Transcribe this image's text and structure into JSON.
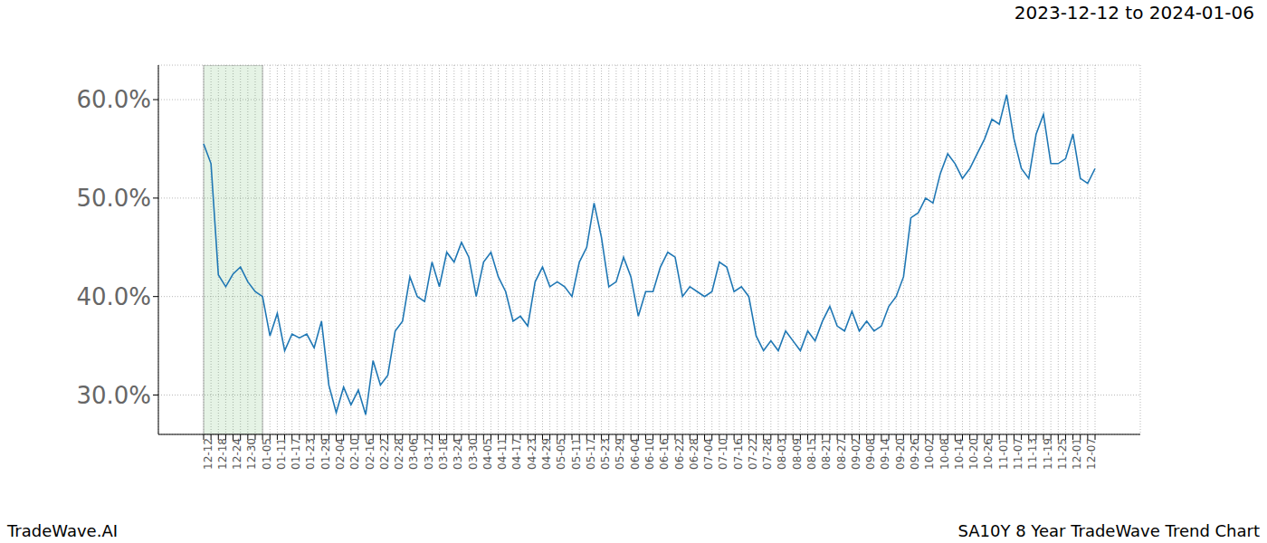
{
  "chart_data": {
    "type": "line",
    "title": "2023-12-12 to 2024-01-06",
    "footer_left": "TradeWave.AI",
    "footer_right": "SA10Y 8 Year TradeWave Trend Chart",
    "categories": [
      "12-12",
      null,
      "12-18",
      null,
      "12-24",
      null,
      "12-30",
      null,
      "01-05",
      null,
      "01-11",
      null,
      "01-17",
      null,
      "01-23",
      null,
      "01-29",
      null,
      "02-04",
      null,
      "02-10",
      null,
      "02-16",
      null,
      "02-22",
      null,
      "02-28",
      null,
      "03-06",
      null,
      "03-12",
      null,
      "03-18",
      null,
      "03-24",
      null,
      "03-30",
      null,
      "04-05",
      null,
      "04-11",
      null,
      "04-17",
      null,
      "04-23",
      null,
      "04-29",
      null,
      "05-05",
      null,
      "05-11",
      null,
      "05-17",
      null,
      "05-23",
      null,
      "05-29",
      null,
      "06-04",
      null,
      "06-10",
      null,
      "06-16",
      null,
      "06-22",
      null,
      "06-28",
      null,
      "07-04",
      null,
      "07-10",
      null,
      "07-16",
      null,
      "07-22",
      null,
      "07-28",
      null,
      "08-03",
      null,
      "08-09",
      null,
      "08-15",
      null,
      "08-21",
      null,
      "08-27",
      null,
      "09-02",
      null,
      "09-08",
      null,
      "09-14",
      null,
      "09-20",
      null,
      "09-26",
      null,
      "10-02",
      null,
      "10-08",
      null,
      "10-14",
      null,
      "10-20",
      null,
      "10-26",
      null,
      "11-01",
      null,
      "11-07",
      null,
      "11-13",
      null,
      "11-19",
      null,
      "11-25",
      null,
      "12-01",
      null,
      "12-07",
      null
    ],
    "values": [
      55.5,
      53.5,
      42.2,
      41.0,
      42.3,
      43.0,
      41.5,
      40.5,
      40.0,
      36.0,
      38.3,
      34.5,
      36.2,
      35.8,
      36.2,
      34.8,
      37.5,
      31.0,
      28.2,
      30.8,
      29.0,
      30.5,
      28.0,
      33.5,
      31.0,
      32.0,
      36.5,
      37.5,
      42.0,
      40.0,
      39.5,
      43.5,
      41.0,
      44.5,
      43.5,
      45.5,
      44.0,
      40.0,
      43.5,
      44.5,
      42.0,
      40.5,
      37.5,
      38.0,
      37.0,
      41.5,
      43.0,
      41.0,
      41.5,
      41.0,
      40.0,
      43.5,
      45.0,
      49.5,
      46.0,
      41.0,
      41.5,
      44.0,
      42.0,
      38.0,
      40.5,
      40.5,
      43.0,
      44.5,
      44.0,
      40.0,
      41.0,
      40.5,
      40.0,
      40.5,
      43.5,
      43.0,
      40.5,
      41.0,
      40.0,
      36.0,
      34.5,
      35.5,
      34.5,
      36.5,
      35.5,
      34.5,
      36.5,
      35.5,
      37.5,
      39.0,
      37.0,
      36.5,
      38.5,
      36.5,
      37.5,
      36.5,
      37.0,
      39.0,
      40.0,
      42.0,
      48.0,
      48.5,
      50.0,
      49.5,
      52.5,
      54.5,
      53.5,
      52.0,
      53.0,
      54.5,
      56.0,
      58.0,
      57.5,
      60.5,
      56.0,
      53.0,
      52.0,
      56.5,
      58.5,
      53.5,
      53.5,
      54.0,
      56.5,
      52.0,
      51.5,
      53.0
    ],
    "color": "#1f77b4",
    "ylim": [
      26,
      63.5
    ],
    "yticks": [
      {
        "value": 30,
        "label": "30.0%"
      },
      {
        "value": 40,
        "label": "40.0%"
      },
      {
        "value": 50,
        "label": "50.0%"
      },
      {
        "value": 60,
        "label": "60.0%"
      }
    ],
    "grid": true,
    "highlight": {
      "from": "12-12",
      "to": "01-05",
      "color": "#2ca02c"
    }
  }
}
